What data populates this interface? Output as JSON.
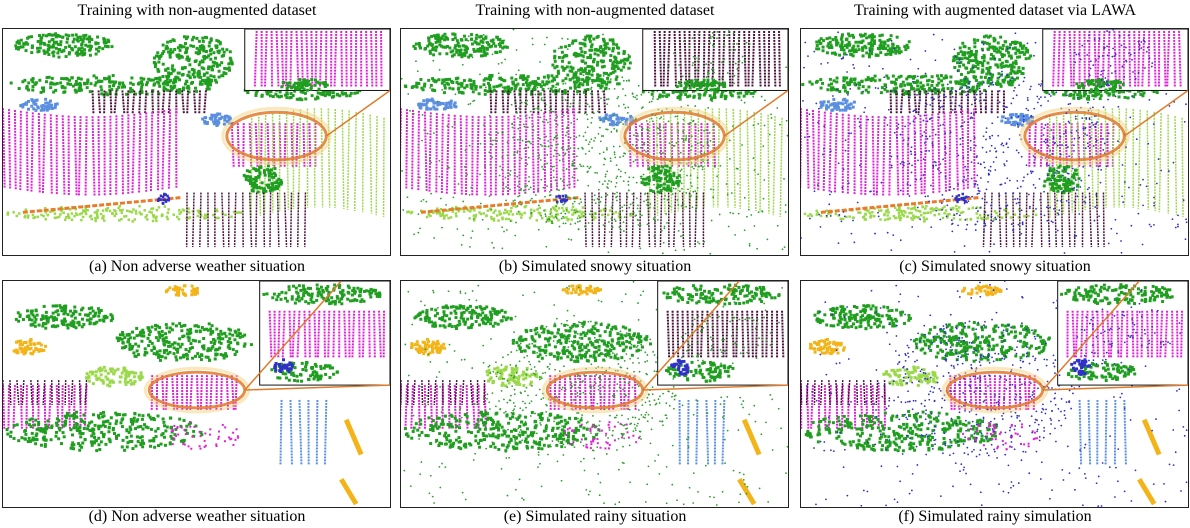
{
  "columns": [
    {
      "title": "Training with non-augmented dataset"
    },
    {
      "title": "Training with non-augmented dataset"
    },
    {
      "title": "Training with augmented dataset via LAWA"
    }
  ],
  "panels": [
    {
      "caption": "(a) Non adverse weather situation",
      "noise": "none",
      "scene": "top"
    },
    {
      "caption": "(b) Simulated  snowy situation",
      "noise": "green",
      "scene": "top"
    },
    {
      "caption": "(c) Simulated  snowy situation",
      "noise": "blue",
      "scene": "top"
    },
    {
      "caption": "(d) Non adverse weather situation",
      "noise": "none",
      "scene": "bottom"
    },
    {
      "caption": "(e) Simulated  rainy situation",
      "noise": "green",
      "scene": "bottom"
    },
    {
      "caption": "(f) Simulated  rainy simulation",
      "noise": "blue",
      "scene": "bottom"
    }
  ],
  "colors": {
    "road": "#e21fd6",
    "sidewalk": "#4a0f3a",
    "vegetation": "#1f9e1f",
    "terrain": "#9ad94a",
    "car": "#5b8fe0",
    "building": "#f2b418",
    "snow_noise_green": "#2f9e2f",
    "snow_noise_blue": "#3030c8",
    "highlight": "#e07a2a"
  }
}
